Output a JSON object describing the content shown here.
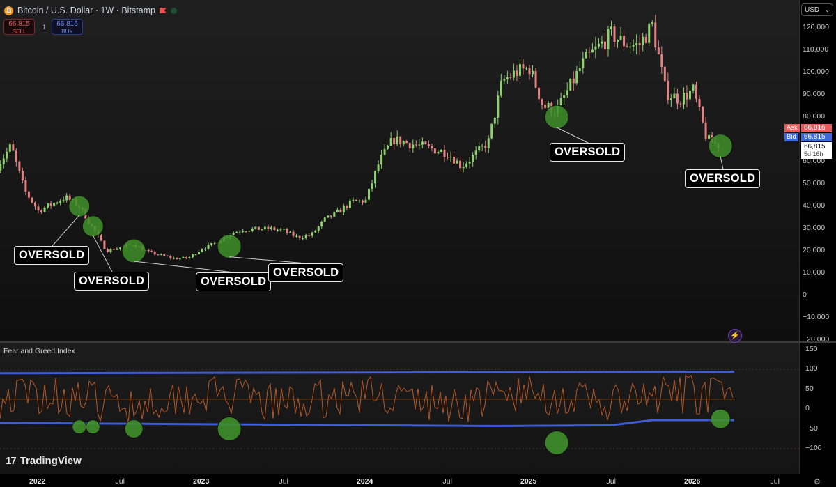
{
  "header": {
    "title": "Bitcoin / U.S. Dollar · 1W · Bitstamp",
    "coin_glyph": "₿",
    "sell_price": "66,815",
    "sell_label": "SELL",
    "buy_price": "66,816",
    "buy_label": "BUY",
    "lot": "1"
  },
  "price_scale": {
    "currency": "USD",
    "ticks": [
      "120,000",
      "110,000",
      "100,000",
      "90,000",
      "80,000",
      "70,000",
      "60,000",
      "50,000",
      "40,000",
      "30,000",
      "20,000",
      "10,000",
      "0",
      "−10,000",
      "−20,000"
    ]
  },
  "tags": {
    "ask_label": "Ask",
    "ask_value": "66,816",
    "bid_label": "Bid",
    "bid_value": "66,815",
    "last_price": "66,815",
    "countdown": "5d 16h"
  },
  "indicator": {
    "title": "Fear and Greed Index",
    "ticks": [
      "150",
      "100",
      "50",
      "0",
      "−50",
      "−100"
    ]
  },
  "time_axis": [
    {
      "label": "2022",
      "year": true
    },
    {
      "label": "Jul",
      "year": false
    },
    {
      "label": "2023",
      "year": true
    },
    {
      "label": "Jul",
      "year": false
    },
    {
      "label": "2024",
      "year": true
    },
    {
      "label": "Jul",
      "year": false
    },
    {
      "label": "2025",
      "year": true
    },
    {
      "label": "Jul",
      "year": false
    },
    {
      "label": "2026",
      "year": true
    },
    {
      "label": "Jul",
      "year": false
    }
  ],
  "annotations": {
    "label": "OVERSOLD",
    "count": 6
  },
  "branding": {
    "name": "TradingView",
    "mark": "17"
  },
  "colors": {
    "up": "#8fd16e",
    "down": "#e38383",
    "circle": "#3f8f2a",
    "band": "#3f5bd6",
    "fg_line": "#d2642c",
    "mid_line": "#c77a3a"
  },
  "chart_data": {
    "type": "candlestick",
    "title": "Bitcoin / U.S. Dollar · 1W · Bitstamp",
    "ylim": [
      -20000,
      125000
    ],
    "y_ticks": [
      120000,
      110000,
      100000,
      90000,
      80000,
      70000,
      60000,
      50000,
      40000,
      30000,
      20000,
      10000,
      0,
      -10000,
      -20000
    ],
    "interval": "1W",
    "path_points": [
      {
        "x": "2021-10",
        "y": 58000
      },
      {
        "x": "2021-11",
        "y": 67000
      },
      {
        "x": "2021-12",
        "y": 47000
      },
      {
        "x": "2022-01",
        "y": 38000
      },
      {
        "x": "2022-03",
        "y": 44000
      },
      {
        "x": "2022-04",
        "y": 40000
      },
      {
        "x": "2022-05",
        "y": 30000
      },
      {
        "x": "2022-06",
        "y": 20000
      },
      {
        "x": "2022-08",
        "y": 23000
      },
      {
        "x": "2022-09",
        "y": 19500
      },
      {
        "x": "2022-11",
        "y": 16500
      },
      {
        "x": "2022-12",
        "y": 16800
      },
      {
        "x": "2023-01",
        "y": 21000
      },
      {
        "x": "2023-02",
        "y": 23500
      },
      {
        "x": "2023-03",
        "y": 27500
      },
      {
        "x": "2023-04",
        "y": 29500
      },
      {
        "x": "2023-06",
        "y": 30000
      },
      {
        "x": "2023-07",
        "y": 29000
      },
      {
        "x": "2023-08",
        "y": 26000
      },
      {
        "x": "2023-09",
        "y": 27000
      },
      {
        "x": "2023-10",
        "y": 34000
      },
      {
        "x": "2023-11",
        "y": 37500
      },
      {
        "x": "2023-12",
        "y": 42000
      },
      {
        "x": "2024-01",
        "y": 42500
      },
      {
        "x": "2024-02",
        "y": 60000
      },
      {
        "x": "2024-03",
        "y": 70000
      },
      {
        "x": "2024-05",
        "y": 67000
      },
      {
        "x": "2024-07",
        "y": 64000
      },
      {
        "x": "2024-08",
        "y": 58000
      },
      {
        "x": "2024-09",
        "y": 63000
      },
      {
        "x": "2024-10",
        "y": 69000
      },
      {
        "x": "2024-11",
        "y": 96000
      },
      {
        "x": "2024-12",
        "y": 100000
      },
      {
        "x": "2025-01",
        "y": 102000
      },
      {
        "x": "2025-02",
        "y": 85000
      },
      {
        "x": "2025-03",
        "y": 83000
      },
      {
        "x": "2025-04",
        "y": 94000
      },
      {
        "x": "2025-05",
        "y": 105000
      },
      {
        "x": "2025-07",
        "y": 117000
      },
      {
        "x": "2025-08",
        "y": 113000
      },
      {
        "x": "2025-09",
        "y": 112000
      },
      {
        "x": "2025-10",
        "y": 121000
      },
      {
        "x": "2025-11",
        "y": 91000
      },
      {
        "x": "2025-12",
        "y": 88000
      },
      {
        "x": "2026-01",
        "y": 92000
      },
      {
        "x": "2026-02",
        "y": 70000
      },
      {
        "x": "2026-03",
        "y": 66815
      }
    ],
    "oversold_points": [
      {
        "x": "2022-04",
        "y": 40000
      },
      {
        "x": "2022-05",
        "y": 31000
      },
      {
        "x": "2022-08",
        "y": 20000
      },
      {
        "x": "2023-03",
        "y": 22000
      },
      {
        "x": "2025-03",
        "y": 80000
      },
      {
        "x": "2026-03",
        "y": 67000
      }
    ],
    "indicator": {
      "name": "Fear and Greed Index",
      "ylim": [
        -110,
        150
      ],
      "upper_band": 90,
      "lower_band_start": -35,
      "lower_band_end": -28,
      "mid_line": 25,
      "oversold_values": [
        {
          "x": "2022-04",
          "y": -45
        },
        {
          "x": "2022-05",
          "y": -45
        },
        {
          "x": "2022-08",
          "y": -50
        },
        {
          "x": "2023-03",
          "y": -50
        },
        {
          "x": "2025-03",
          "y": -85
        },
        {
          "x": "2026-03",
          "y": -25
        }
      ]
    },
    "last_price": 66815
  }
}
